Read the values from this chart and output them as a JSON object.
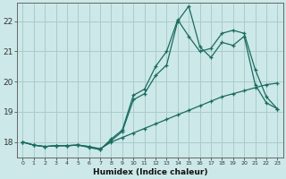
{
  "xlabel": "Humidex (Indice chaleur)",
  "background_color": "#cce8e8",
  "grid_color": "#aacccc",
  "line_color": "#1a6b60",
  "xlim": [
    -0.5,
    23.5
  ],
  "ylim": [
    17.5,
    22.6
  ],
  "yticks": [
    18,
    19,
    20,
    21,
    22
  ],
  "xticks": [
    0,
    1,
    2,
    3,
    4,
    5,
    6,
    7,
    8,
    9,
    10,
    11,
    12,
    13,
    14,
    15,
    16,
    17,
    18,
    19,
    20,
    21,
    22,
    23
  ],
  "series1_x": [
    0,
    1,
    2,
    3,
    4,
    5,
    6,
    7,
    8,
    9,
    10,
    11,
    12,
    13,
    14,
    15,
    16,
    17,
    18,
    19,
    20,
    21,
    22,
    23
  ],
  "series1_y": [
    18.0,
    17.9,
    17.85,
    17.88,
    17.88,
    17.9,
    17.85,
    17.78,
    18.0,
    18.15,
    18.3,
    18.45,
    18.6,
    18.75,
    18.9,
    19.05,
    19.2,
    19.35,
    19.5,
    19.6,
    19.7,
    19.8,
    19.9,
    19.95
  ],
  "series2_x": [
    0,
    1,
    2,
    3,
    4,
    5,
    6,
    7,
    8,
    9,
    10,
    11,
    12,
    13,
    14,
    15,
    16,
    17,
    18,
    19,
    20,
    21,
    22,
    23
  ],
  "series2_y": [
    18.0,
    17.9,
    17.85,
    17.88,
    17.88,
    17.9,
    17.85,
    17.75,
    18.1,
    18.4,
    19.55,
    19.75,
    20.5,
    21.0,
    22.05,
    21.5,
    21.0,
    21.1,
    21.6,
    21.7,
    21.6,
    20.4,
    19.5,
    19.1
  ],
  "series3_x": [
    0,
    1,
    2,
    3,
    4,
    5,
    6,
    7,
    8,
    9,
    10,
    11,
    12,
    13,
    14,
    15,
    16,
    17,
    18,
    19,
    20,
    21,
    22,
    23
  ],
  "series3_y": [
    18.0,
    17.9,
    17.85,
    17.88,
    17.88,
    17.9,
    17.82,
    17.75,
    18.05,
    18.35,
    19.4,
    19.6,
    20.2,
    20.55,
    22.0,
    22.5,
    21.15,
    20.8,
    21.3,
    21.2,
    21.5,
    19.9,
    19.3,
    19.1
  ]
}
